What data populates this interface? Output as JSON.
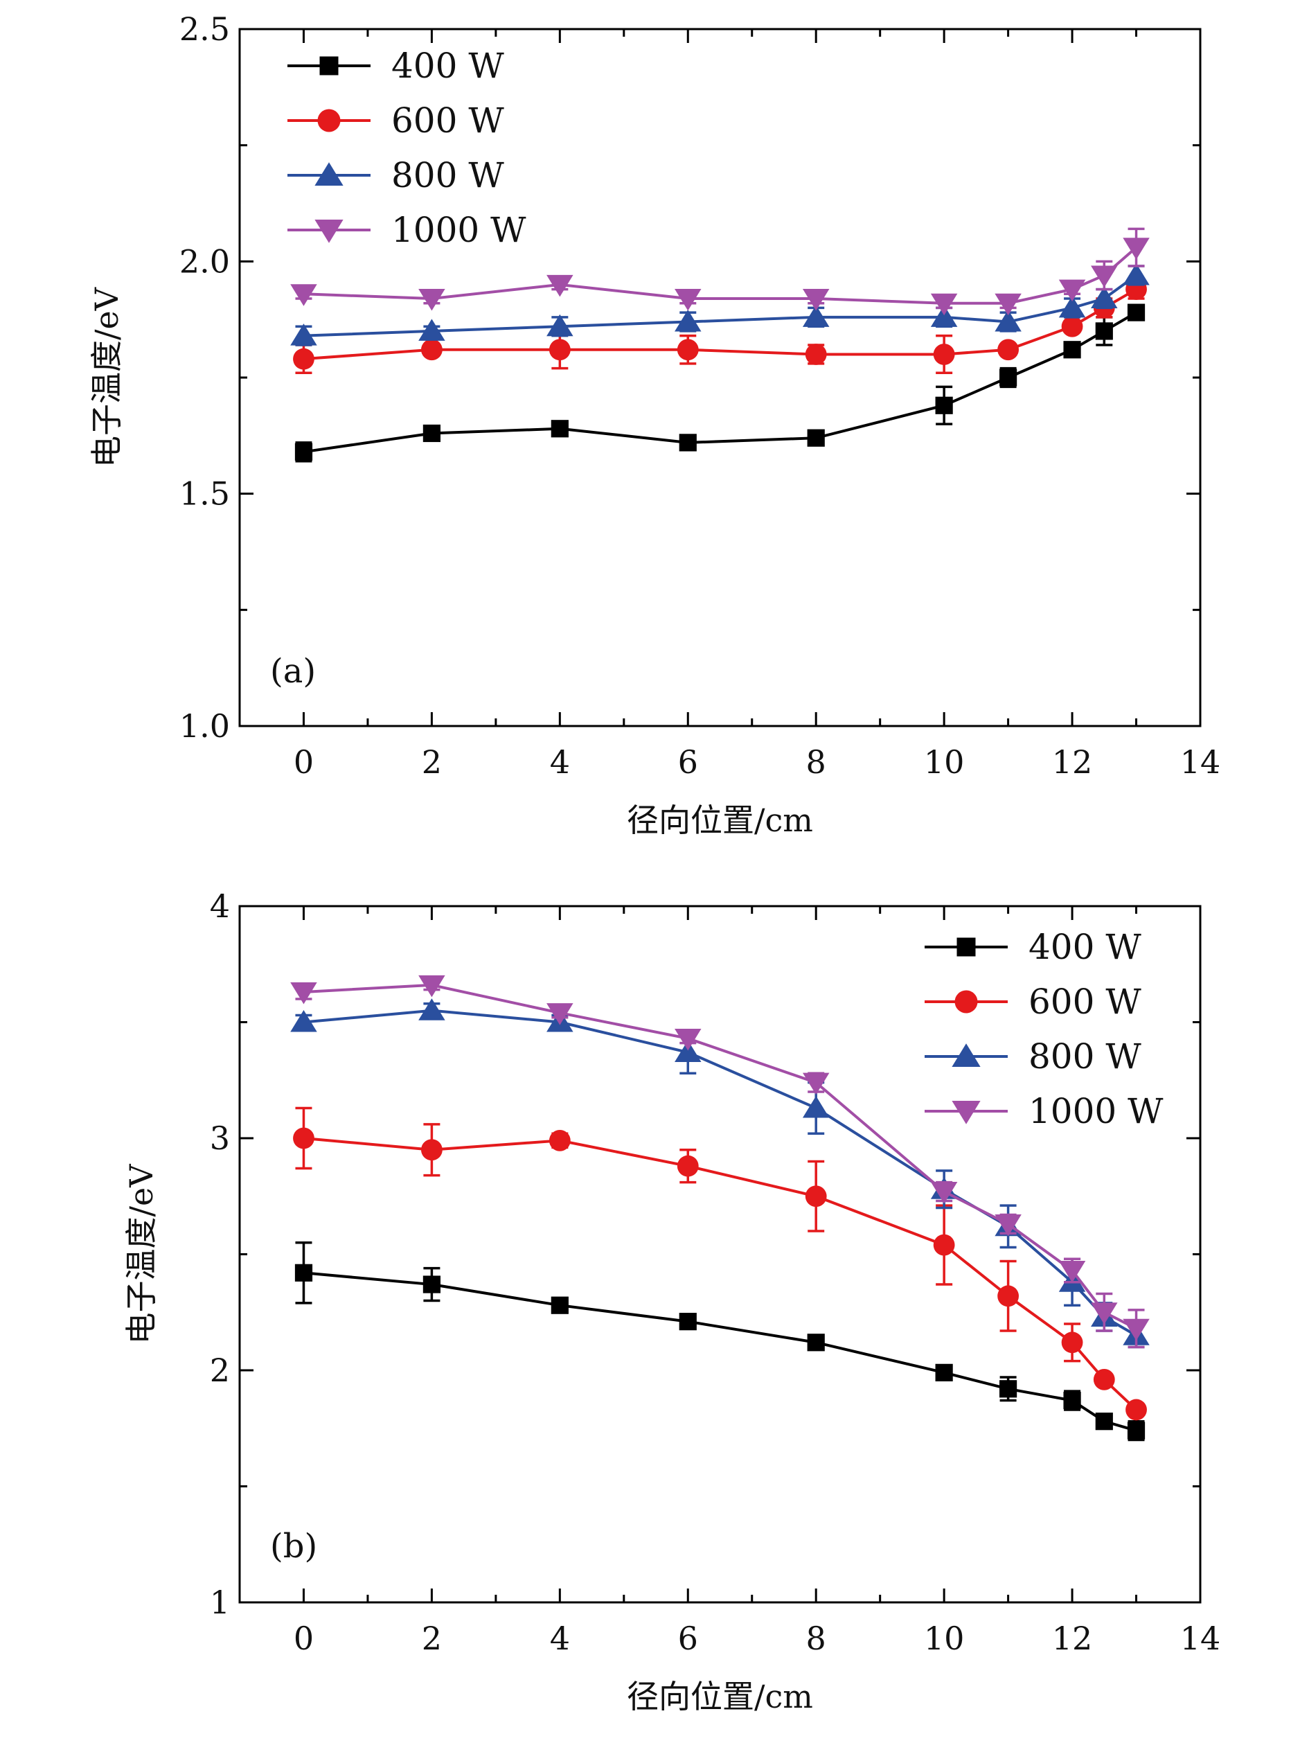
{
  "chart_data": [
    {
      "type": "line",
      "panel_label": "(a)",
      "xlabel": "径向位置/cm",
      "ylabel": "电子温度/eV",
      "xlim": [
        -1,
        14
      ],
      "ylim": [
        1.0,
        2.5
      ],
      "xticks": [
        0,
        2,
        4,
        6,
        8,
        10,
        12,
        14
      ],
      "yticks": [
        1.0,
        1.5,
        2.0,
        2.5
      ],
      "ytick_labels": [
        "1.0",
        "1.5",
        "2.0",
        "2.5"
      ],
      "legend_position": "top-left",
      "x": [
        0,
        2,
        4,
        6,
        8,
        10,
        11,
        12,
        12.5,
        13
      ],
      "series": [
        {
          "name": "400 W",
          "color": "#000000",
          "marker": "square",
          "values": [
            1.59,
            1.63,
            1.64,
            1.61,
            1.62,
            1.69,
            1.75,
            1.81,
            1.85,
            1.89
          ],
          "errors": [
            0.02,
            0.01,
            0.01,
            0.01,
            0.01,
            0.04,
            0.02,
            0.01,
            0.03,
            0.01
          ]
        },
        {
          "name": "600 W",
          "color": "#e41a1c",
          "marker": "circle",
          "values": [
            1.79,
            1.81,
            1.81,
            1.81,
            1.8,
            1.8,
            1.81,
            1.86,
            1.9,
            1.94
          ],
          "errors": [
            0.03,
            0.01,
            0.04,
            0.03,
            0.02,
            0.04,
            0.01,
            0.01,
            0.02,
            0.02
          ]
        },
        {
          "name": "800 W",
          "color": "#2a4f9e",
          "marker": "triangle-up",
          "values": [
            1.84,
            1.85,
            1.86,
            1.87,
            1.88,
            1.88,
            1.87,
            1.9,
            1.92,
            1.97
          ],
          "errors": [
            0.02,
            0.01,
            0.02,
            0.02,
            0.02,
            0.02,
            0.02,
            0.02,
            0.02,
            0.02
          ]
        },
        {
          "name": "1000 W",
          "color": "#a24ea6",
          "marker": "triangle-down",
          "values": [
            1.93,
            1.92,
            1.95,
            1.92,
            1.92,
            1.91,
            1.91,
            1.94,
            1.97,
            2.03
          ],
          "errors": [
            0.01,
            0.01,
            0.01,
            0.01,
            0.01,
            0.01,
            0.01,
            0.01,
            0.03,
            0.04
          ]
        }
      ]
    },
    {
      "type": "line",
      "panel_label": "(b)",
      "xlabel": "径向位置/cm",
      "ylabel": "电子温度/eV",
      "xlim": [
        -1,
        14
      ],
      "ylim": [
        1,
        4
      ],
      "xticks": [
        0,
        2,
        4,
        6,
        8,
        10,
        12,
        14
      ],
      "yticks": [
        1,
        2,
        3,
        4
      ],
      "ytick_labels": [
        "1",
        "2",
        "3",
        "4"
      ],
      "legend_position": "top-right",
      "x": [
        0,
        2,
        4,
        6,
        8,
        10,
        11,
        12,
        12.5,
        13
      ],
      "series": [
        {
          "name": "400 W",
          "color": "#000000",
          "marker": "square",
          "values": [
            2.42,
            2.37,
            2.28,
            2.21,
            2.12,
            1.99,
            1.92,
            1.87,
            1.78,
            1.74
          ],
          "errors": [
            0.13,
            0.07,
            0.02,
            0.02,
            0.02,
            0.02,
            0.05,
            0.04,
            0.02,
            0.04
          ]
        },
        {
          "name": "600 W",
          "color": "#e41a1c",
          "marker": "circle",
          "values": [
            3.0,
            2.95,
            2.99,
            2.88,
            2.75,
            2.54,
            2.32,
            2.12,
            1.96,
            1.83
          ],
          "errors": [
            0.13,
            0.11,
            0.03,
            0.07,
            0.15,
            0.17,
            0.15,
            0.08,
            0.02,
            0.02
          ]
        },
        {
          "name": "800 W",
          "color": "#2a4f9e",
          "marker": "triangle-up",
          "values": [
            3.5,
            3.55,
            3.5,
            3.37,
            3.13,
            2.78,
            2.62,
            2.38,
            2.23,
            2.15
          ],
          "errors": [
            0.03,
            0.03,
            0.03,
            0.09,
            0.11,
            0.08,
            0.09,
            0.1,
            0.06,
            0.05
          ]
        },
        {
          "name": "1000 W",
          "color": "#a24ea6",
          "marker": "triangle-down",
          "values": [
            3.63,
            3.66,
            3.54,
            3.43,
            3.24,
            2.77,
            2.63,
            2.43,
            2.25,
            2.18
          ],
          "errors": [
            0.03,
            0.02,
            0.02,
            0.02,
            0.04,
            0.04,
            0.04,
            0.05,
            0.08,
            0.08
          ]
        }
      ]
    }
  ]
}
